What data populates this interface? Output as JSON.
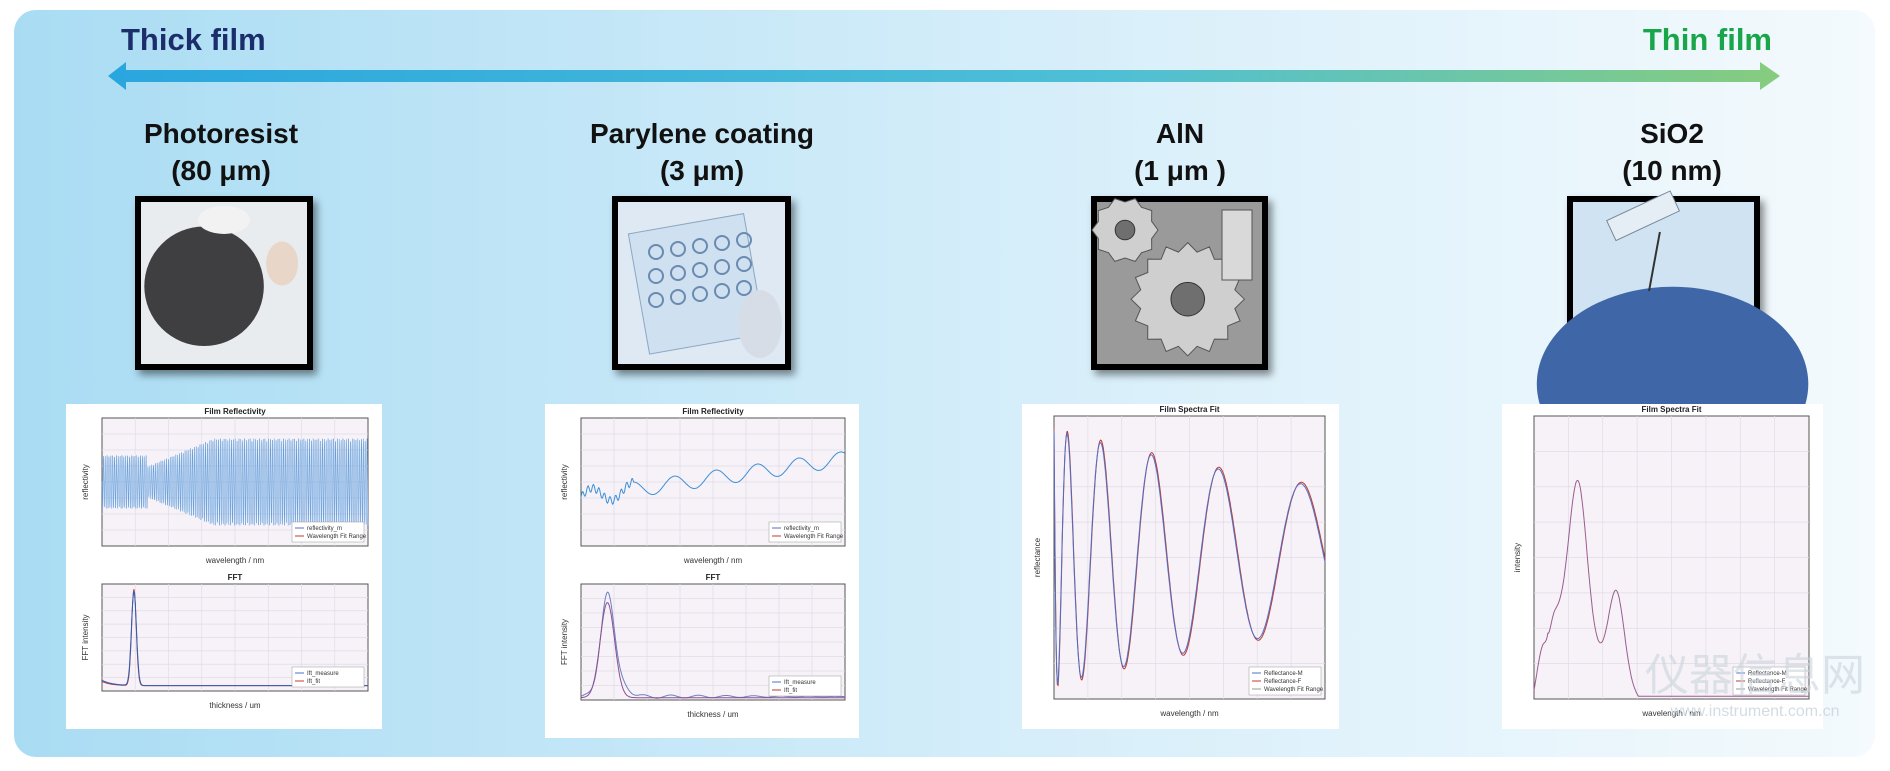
{
  "header": {
    "left_label": "Thick film",
    "right_label": "Thin film"
  },
  "columns": [
    {
      "title": "Photoresist",
      "subtitle": "(80 μm)",
      "plots": [
        {
          "title": "Film Reflectivity",
          "x_label": "wavelength / nm",
          "y_label": "reflectivity",
          "legend": [
            "reflectivity_m",
            "Wavelength Fit Range"
          ]
        },
        {
          "title": "FFT",
          "x_label": "thickness / um",
          "y_label": "FFT intensity",
          "legend": [
            "Ift_measure",
            "Ift_fit"
          ]
        }
      ]
    },
    {
      "title": "Parylene coating",
      "subtitle": "(3 μm)",
      "plots": [
        {
          "title": "Film Reflectivity",
          "x_label": "wavelength / nm",
          "y_label": "reflectivity",
          "legend": [
            "reflectivity_m",
            "Wavelength Fit Range"
          ]
        },
        {
          "title": "FFT",
          "x_label": "thickness / um",
          "y_label": "FFT intensity",
          "legend": [
            "Ift_measure",
            "Ift_fit"
          ]
        }
      ]
    },
    {
      "title": "AlN",
      "subtitle": "(1 μm )",
      "plots": [
        {
          "title": "Film Spectra Fit",
          "x_label": "wavelength / nm",
          "y_label": "reflectance",
          "legend": [
            "Reflectance-M",
            "Reflectance-F",
            "Wavelength Fit Range"
          ]
        }
      ]
    },
    {
      "title": "SiO2",
      "subtitle": "(10 nm)",
      "plots": [
        {
          "title": "Film Spectra Fit",
          "x_label": "wavelength / nm",
          "y_label": "intensity",
          "legend": [
            "Reflectance-M",
            "Reflectance-F",
            "Wavelength Fit Range"
          ]
        }
      ]
    }
  ],
  "watermark": {
    "name": "仪器信息网",
    "url": "www.instrument.com.cn"
  }
}
